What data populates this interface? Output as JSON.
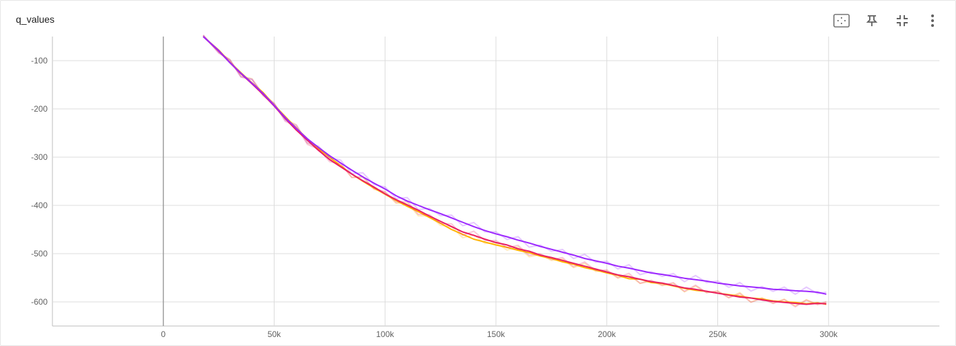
{
  "card": {
    "title": "q_values"
  },
  "toolbar": [
    {
      "name": "fit-domain-icon"
    },
    {
      "name": "pin-icon"
    },
    {
      "name": "collapse-icon"
    },
    {
      "name": "more-vertical-icon"
    }
  ],
  "chart_data": {
    "type": "line",
    "title": "q_values",
    "xlabel": "",
    "ylabel": "",
    "xlim": [
      -50000,
      350000
    ],
    "ylim": [
      -650,
      -50
    ],
    "x_ticks": [
      0,
      50000,
      100000,
      150000,
      200000,
      250000,
      300000
    ],
    "x_tick_labels": [
      "0",
      "50k",
      "100k",
      "150k",
      "200k",
      "250k",
      "300k"
    ],
    "y_ticks": [
      -100,
      -200,
      -300,
      -400,
      -500,
      -600
    ],
    "y_tick_labels": [
      "-100",
      "-200",
      "-300",
      "-400",
      "-500",
      "-600"
    ],
    "grid": true,
    "series": [
      {
        "color": "#ffb300",
        "x": [
          18000,
          25000,
          30000,
          35000,
          40000,
          45000,
          50000,
          55000,
          60000,
          65000,
          70000,
          75000,
          80000,
          85000,
          90000,
          95000,
          100000,
          105000,
          110000,
          115000,
          120000,
          125000,
          130000,
          135000,
          140000,
          145000,
          150000,
          155000,
          160000,
          165000,
          170000,
          175000,
          180000,
          185000,
          190000,
          195000,
          200000,
          205000,
          210000,
          215000,
          220000,
          225000,
          230000,
          235000,
          240000,
          245000,
          250000,
          255000,
          260000,
          265000,
          270000,
          275000,
          280000,
          285000,
          290000,
          295000,
          299000
        ],
        "y": [
          -50,
          -78,
          -103,
          -125,
          -146,
          -166,
          -192,
          -216,
          -240,
          -262,
          -283,
          -300,
          -318,
          -335,
          -350,
          -364,
          -377,
          -390,
          -402,
          -413,
          -425,
          -437,
          -450,
          -460,
          -470,
          -476,
          -482,
          -487,
          -493,
          -498,
          -505,
          -510,
          -517,
          -522,
          -529,
          -534,
          -540,
          -545,
          -552,
          -553,
          -560,
          -562,
          -567,
          -572,
          -576,
          -578,
          -582,
          -585,
          -588,
          -592,
          -594,
          -598,
          -600,
          -601,
          -604,
          -602,
          -605
        ]
      },
      {
        "color": "#e91e63",
        "x": [
          18000,
          25000,
          30000,
          35000,
          40000,
          45000,
          50000,
          55000,
          60000,
          65000,
          70000,
          75000,
          80000,
          85000,
          90000,
          95000,
          100000,
          105000,
          110000,
          115000,
          120000,
          125000,
          130000,
          135000,
          140000,
          145000,
          150000,
          155000,
          160000,
          165000,
          170000,
          175000,
          180000,
          185000,
          190000,
          195000,
          200000,
          205000,
          210000,
          215000,
          220000,
          225000,
          230000,
          235000,
          240000,
          245000,
          250000,
          255000,
          260000,
          265000,
          270000,
          275000,
          280000,
          285000,
          290000,
          295000,
          299000
        ],
        "y": [
          -50,
          -80,
          -104,
          -127,
          -148,
          -170,
          -194,
          -220,
          -244,
          -265,
          -286,
          -305,
          -320,
          -335,
          -349,
          -362,
          -376,
          -388,
          -399,
          -410,
          -422,
          -433,
          -444,
          -455,
          -462,
          -470,
          -477,
          -482,
          -490,
          -495,
          -503,
          -508,
          -514,
          -520,
          -526,
          -532,
          -538,
          -544,
          -548,
          -553,
          -558,
          -561,
          -566,
          -571,
          -574,
          -578,
          -582,
          -586,
          -590,
          -592,
          -596,
          -599,
          -601,
          -603,
          -605,
          -603,
          -604
        ]
      },
      {
        "color": "#9c27ff",
        "x": [
          18000,
          25000,
          30000,
          35000,
          40000,
          45000,
          50000,
          55000,
          60000,
          65000,
          70000,
          75000,
          80000,
          85000,
          90000,
          95000,
          100000,
          105000,
          110000,
          115000,
          120000,
          125000,
          130000,
          135000,
          140000,
          145000,
          150000,
          155000,
          160000,
          165000,
          170000,
          175000,
          180000,
          185000,
          190000,
          195000,
          200000,
          205000,
          210000,
          215000,
          220000,
          225000,
          230000,
          235000,
          240000,
          245000,
          250000,
          255000,
          260000,
          265000,
          270000,
          275000,
          280000,
          285000,
          290000,
          295000,
          299000
        ],
        "y": [
          -50,
          -79,
          -104,
          -126,
          -147,
          -168,
          -193,
          -218,
          -241,
          -262,
          -280,
          -297,
          -312,
          -327,
          -341,
          -354,
          -366,
          -380,
          -391,
          -400,
          -409,
          -417,
          -426,
          -435,
          -444,
          -452,
          -459,
          -465,
          -472,
          -478,
          -485,
          -491,
          -497,
          -503,
          -510,
          -515,
          -520,
          -526,
          -530,
          -535,
          -540,
          -543,
          -547,
          -551,
          -554,
          -557,
          -561,
          -564,
          -567,
          -569,
          -571,
          -574,
          -575,
          -577,
          -578,
          -580,
          -584
        ]
      }
    ]
  }
}
